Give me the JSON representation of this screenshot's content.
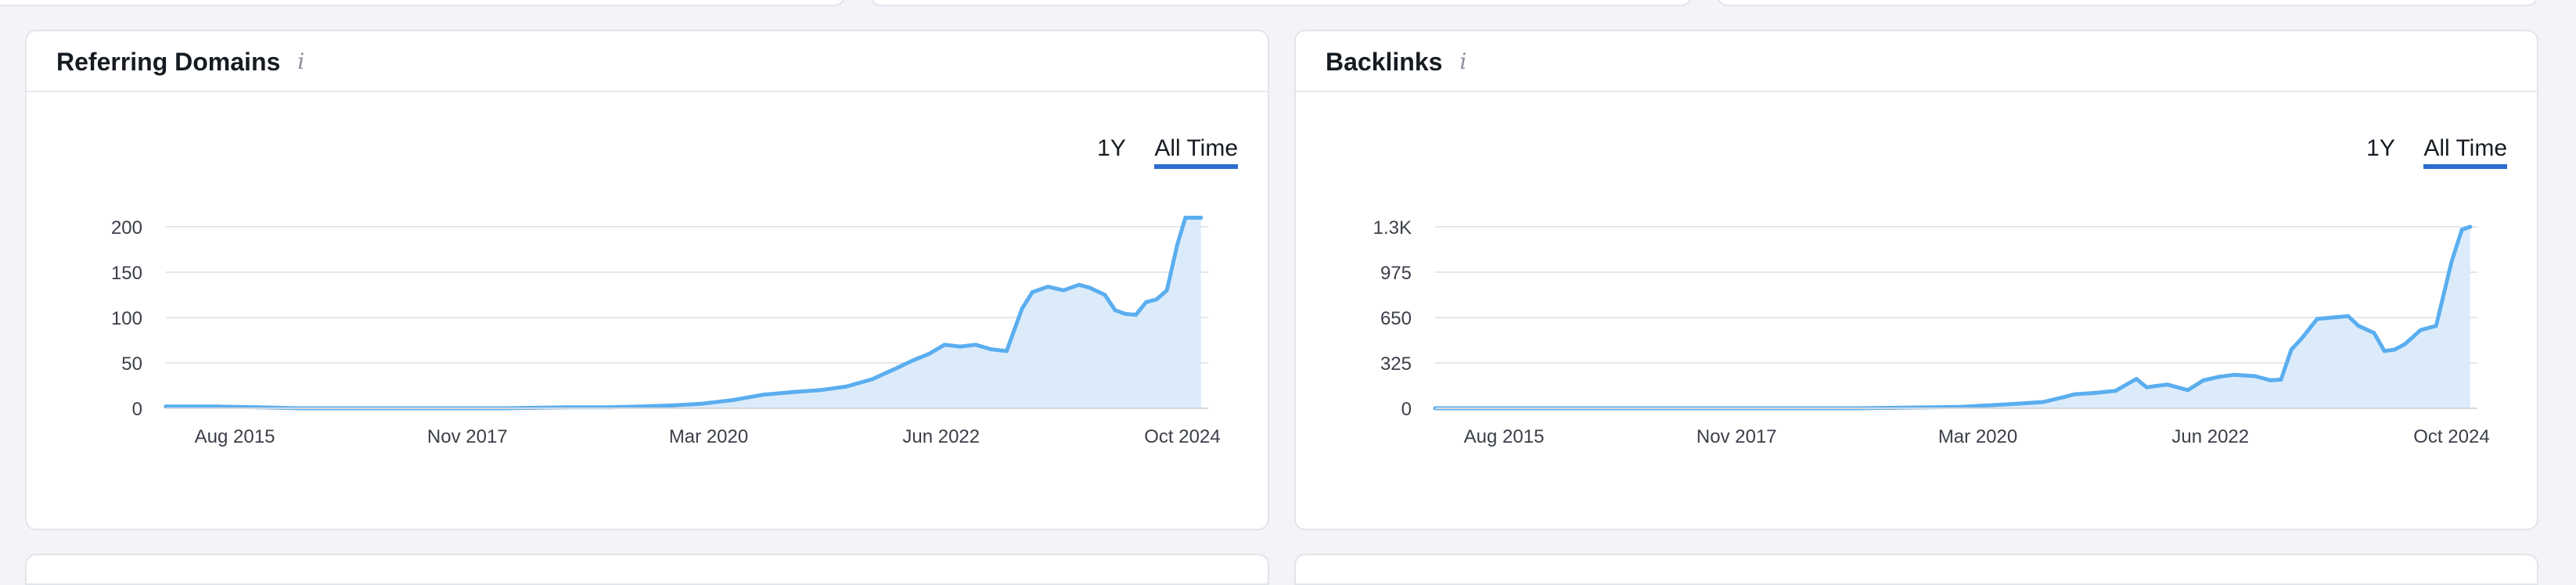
{
  "colors": {
    "line": "#5aaeef",
    "area": "#dcebfa",
    "grid": "#e4e6eb",
    "active_tab_underline": "#2e6bd0"
  },
  "cards": [
    {
      "title": "Referring Domains",
      "info_icon": "info-icon",
      "range_options": [
        "1Y",
        "All Time"
      ],
      "selected_range": "All Time"
    },
    {
      "title": "Backlinks",
      "info_icon": "info-icon",
      "range_options": [
        "1Y",
        "All Time"
      ],
      "selected_range": "All Time"
    }
  ],
  "chart_data": [
    {
      "type": "area",
      "title": "Referring Domains",
      "xlabel": "",
      "ylabel": "",
      "x_ticks": [
        "Aug 2015",
        "Nov 2017",
        "Mar 2020",
        "Jun 2022",
        "Oct 2024"
      ],
      "x_range": [
        "Dec 2014",
        "Jan 2025"
      ],
      "y_ticks": [
        "0",
        "50",
        "100",
        "150",
        "200"
      ],
      "ylim": [
        0,
        200
      ],
      "grid": true,
      "series": [
        {
          "name": "Referring Domains",
          "x": [
            2015.0,
            2015.4,
            2015.8,
            2016.2,
            2016.6,
            2017.0,
            2017.6,
            2018.2,
            2018.8,
            2019.2,
            2019.5,
            2019.8,
            2020.1,
            2020.4,
            2020.7,
            2021.0,
            2021.25,
            2021.5,
            2021.75,
            2022.0,
            2022.15,
            2022.3,
            2022.45,
            2022.6,
            2022.75,
            2022.9,
            2023.05,
            2023.2,
            2023.3,
            2023.45,
            2023.6,
            2023.75,
            2023.85,
            2024.0,
            2024.1,
            2024.2,
            2024.3,
            2024.4,
            2024.5,
            2024.6,
            2024.7,
            2024.78,
            2024.86,
            2024.93
          ],
          "values": [
            2,
            2,
            1,
            0,
            0,
            0,
            0,
            0,
            1,
            1,
            2,
            3,
            5,
            9,
            15,
            18,
            20,
            24,
            32,
            45,
            53,
            60,
            70,
            68,
            70,
            65,
            63,
            110,
            128,
            134,
            130,
            136,
            133,
            125,
            108,
            104,
            103,
            117,
            120,
            130,
            180,
            210,
            210,
            210
          ]
        }
      ]
    },
    {
      "type": "area",
      "title": "Backlinks",
      "xlabel": "",
      "ylabel": "",
      "x_ticks": [
        "Aug 2015",
        "Nov 2017",
        "Mar 2020",
        "Jun 2022",
        "Oct 2024"
      ],
      "x_range": [
        "Dec 2014",
        "Jan 2025"
      ],
      "y_ticks": [
        "0",
        "325",
        "650",
        "975",
        "1.3K"
      ],
      "ylim": [
        0,
        1300
      ],
      "grid": true,
      "series": [
        {
          "name": "Backlinks",
          "x": [
            2015.0,
            2016.0,
            2017.0,
            2018.0,
            2019.0,
            2020.0,
            2020.5,
            2020.8,
            2021.0,
            2021.1,
            2021.3,
            2021.5,
            2021.7,
            2021.8,
            2021.9,
            2022.0,
            2022.2,
            2022.35,
            2022.5,
            2022.65,
            2022.85,
            2023.0,
            2023.1,
            2023.2,
            2023.3,
            2023.45,
            2023.6,
            2023.75,
            2023.85,
            2024.0,
            2024.1,
            2024.2,
            2024.3,
            2024.45,
            2024.6,
            2024.75,
            2024.85,
            2024.93
          ],
          "values": [
            0,
            0,
            0,
            0,
            0,
            10,
            30,
            45,
            80,
            100,
            110,
            125,
            210,
            150,
            160,
            170,
            130,
            200,
            225,
            240,
            230,
            200,
            205,
            420,
            500,
            640,
            650,
            660,
            590,
            540,
            410,
            420,
            460,
            560,
            590,
            1050,
            1280,
            1300
          ]
        }
      ]
    }
  ]
}
